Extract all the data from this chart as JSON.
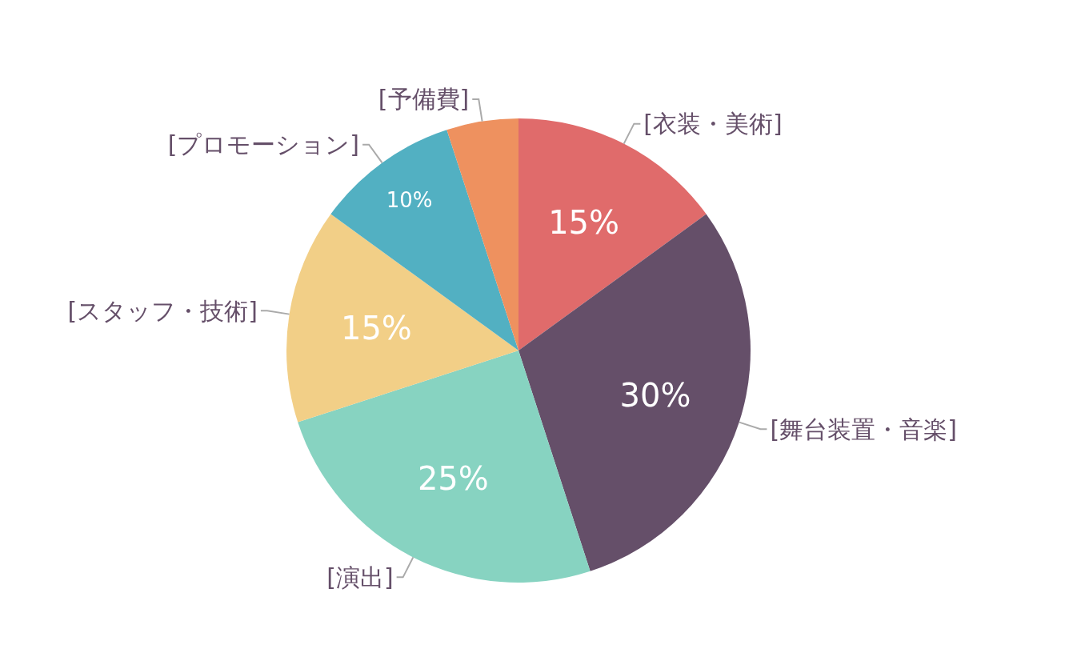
{
  "chart_data": {
    "type": "pie",
    "categories": [
      "[衣装・美術]",
      "[舞台装置・音楽]",
      "[演出]",
      "[スタッフ・技術]",
      "[プロモーション]",
      "[予備費]"
    ],
    "values": [
      15,
      30,
      25,
      15,
      10,
      5
    ],
    "value_labels": [
      "15%",
      "30%",
      "25%",
      "15%",
      "10%",
      null
    ],
    "colors": [
      "#e06b6b",
      "#654f69",
      "#87d3c1",
      "#f2cf87",
      "#52b0c2",
      "#ee915f"
    ]
  }
}
